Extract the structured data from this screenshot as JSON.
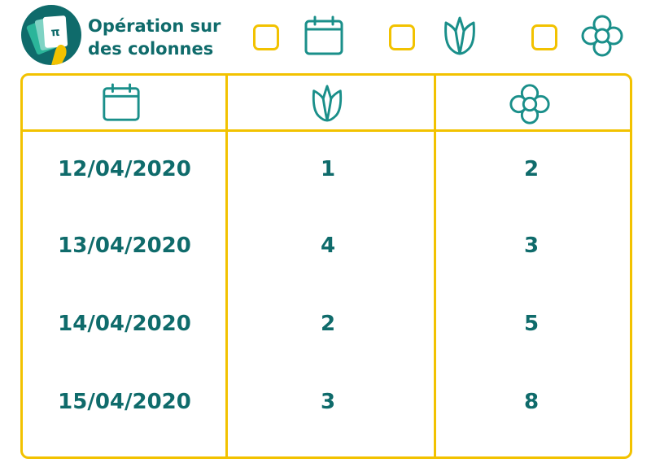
{
  "header": {
    "title_line1": "Opération sur",
    "title_line2": "des colonnes",
    "logo_icon": "cards-hand-icon",
    "filters": [
      {
        "icon": "calendar-icon",
        "checked": false
      },
      {
        "icon": "tulip-icon",
        "checked": false
      },
      {
        "icon": "flower-icon",
        "checked": false
      }
    ]
  },
  "table": {
    "columns": [
      {
        "icon": "calendar-icon"
      },
      {
        "icon": "tulip-icon"
      },
      {
        "icon": "flower-icon"
      }
    ],
    "rows": [
      {
        "date": "12/04/2020",
        "tulips": "1",
        "flowers": "2"
      },
      {
        "date": "13/04/2020",
        "tulips": "4",
        "flowers": "3"
      },
      {
        "date": "14/04/2020",
        "tulips": "2",
        "flowers": "5"
      },
      {
        "date": "15/04/2020",
        "tulips": "3",
        "flowers": "8"
      }
    ]
  },
  "colors": {
    "accent": "#f2c200",
    "teal": "#0f6b6b",
    "icon_teal": "#1a8f8a"
  }
}
